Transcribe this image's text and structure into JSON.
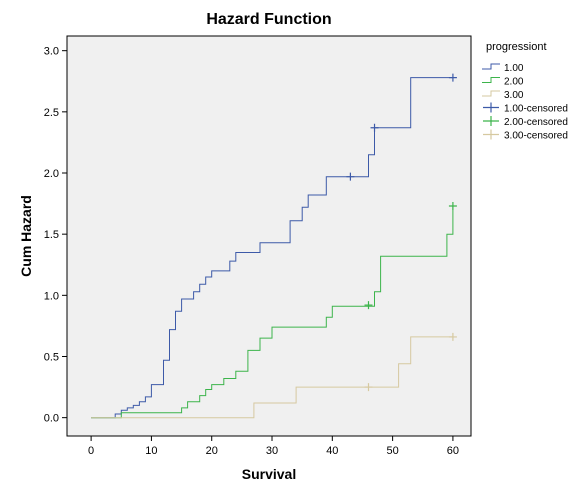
{
  "chart_data": {
    "type": "line",
    "title": "Hazard Function",
    "xlabel": "Survival",
    "ylabel": "Cum Hazard",
    "xlim": [
      -4,
      63
    ],
    "ylim": [
      -0.15,
      3.12
    ],
    "x_ticks": [
      0,
      10,
      20,
      30,
      40,
      50,
      60
    ],
    "y_ticks": [
      0.0,
      0.5,
      1.0,
      1.5,
      2.0,
      2.5,
      3.0
    ],
    "x_tick_labels": [
      "0",
      "10",
      "20",
      "30",
      "40",
      "50",
      "60"
    ],
    "y_tick_labels": [
      "0.0",
      "0.5",
      "1.0",
      "1.5",
      "2.0",
      "2.5",
      "3.0"
    ],
    "grid": false,
    "legend_title": "progressiont",
    "legend_placement": "right",
    "series": [
      {
        "name": "1.00",
        "color": "#3d5aa8",
        "step": true,
        "x": [
          0,
          4,
          5,
          6,
          7,
          8,
          9,
          10,
          12,
          13,
          14,
          15,
          17,
          18,
          19,
          20,
          23,
          24,
          28,
          33,
          35,
          36,
          39,
          46,
          47,
          53,
          60
        ],
        "y": [
          0,
          0.03,
          0.06,
          0.08,
          0.1,
          0.13,
          0.17,
          0.27,
          0.47,
          0.72,
          0.87,
          0.97,
          1.03,
          1.09,
          1.15,
          1.2,
          1.28,
          1.35,
          1.43,
          1.61,
          1.72,
          1.82,
          1.97,
          2.15,
          2.37,
          2.78,
          2.78
        ]
      },
      {
        "name": "2.00",
        "color": "#3cb44b",
        "step": true,
        "x": [
          0,
          5,
          15,
          16,
          18,
          19,
          20,
          22,
          24,
          26,
          28,
          30,
          39,
          40,
          47,
          48,
          59,
          60
        ],
        "y": [
          0,
          0.04,
          0.08,
          0.13,
          0.18,
          0.23,
          0.27,
          0.32,
          0.38,
          0.55,
          0.65,
          0.74,
          0.82,
          0.91,
          1.03,
          1.32,
          1.5,
          1.73
        ]
      },
      {
        "name": "3.00",
        "color": "#d6c9a0",
        "step": true,
        "x": [
          0,
          27,
          34,
          51,
          53,
          60
        ],
        "y": [
          0,
          0.12,
          0.25,
          0.44,
          0.66,
          0.66
        ]
      },
      {
        "name": "1.00-censored",
        "color": "#3d5aa8",
        "marker": "plus",
        "x": [
          43,
          47,
          60
        ],
        "y": [
          1.97,
          2.37,
          2.78
        ]
      },
      {
        "name": "2.00-censored",
        "color": "#3cb44b",
        "marker": "plus",
        "x": [
          46,
          60
        ],
        "y": [
          0.92,
          1.73
        ]
      },
      {
        "name": "3.00-censored",
        "color": "#d6c9a0",
        "marker": "plus",
        "x": [
          46,
          60
        ],
        "y": [
          0.25,
          0.66
        ]
      }
    ]
  }
}
